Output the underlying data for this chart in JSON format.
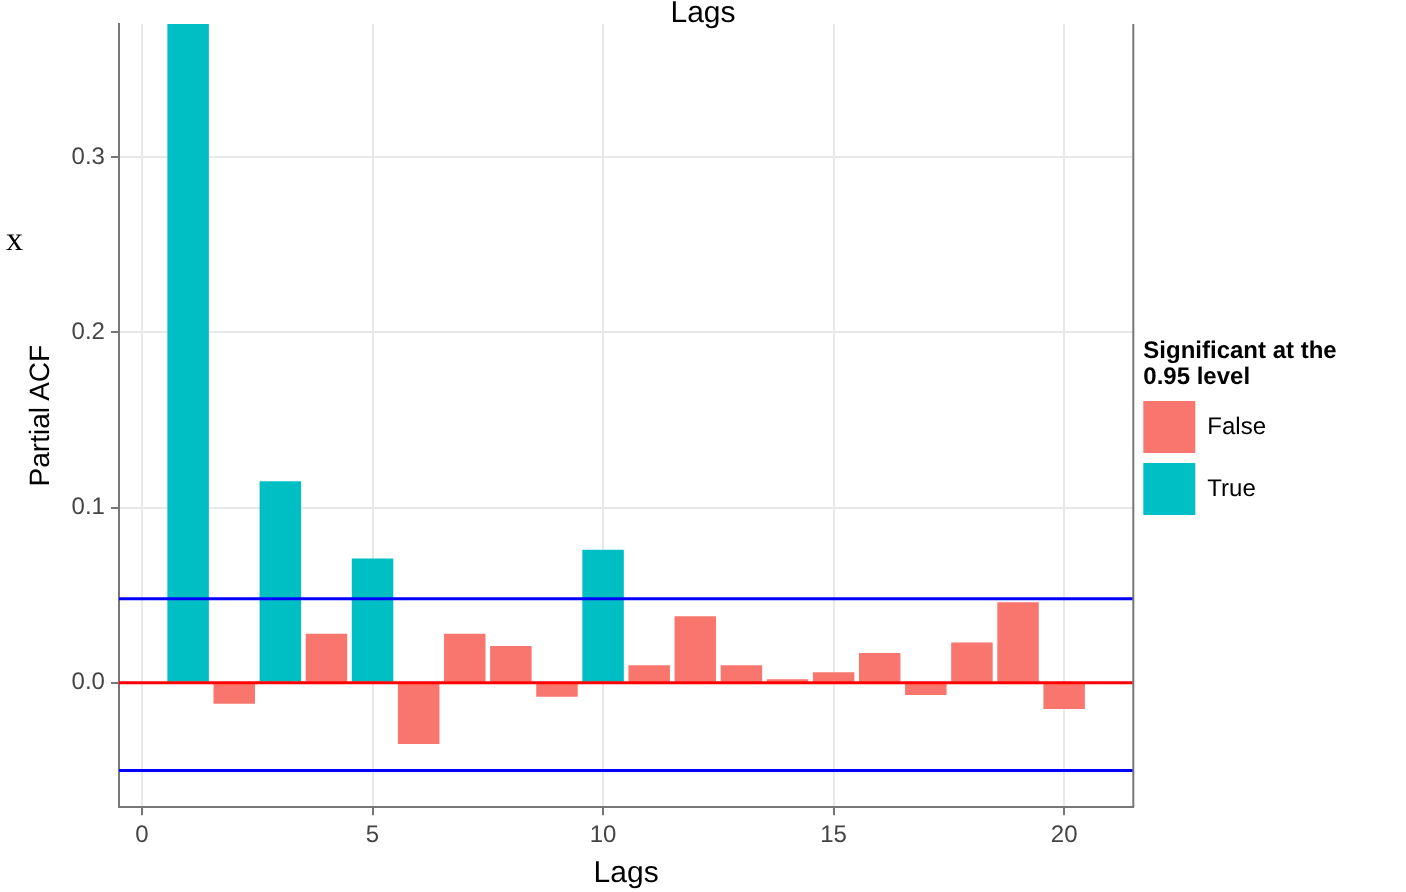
{
  "chart_data": {
    "type": "bar",
    "title": "Lags",
    "xlabel": "Lags",
    "ylabel": "Partial ACF",
    "legend_title": "Significant at the 0.95 level",
    "x": [
      1,
      2,
      3,
      4,
      5,
      6,
      7,
      8,
      9,
      10,
      11,
      12,
      13,
      14,
      15,
      16,
      17,
      18,
      19,
      20
    ],
    "series": [
      {
        "name": "False",
        "color": "#f8766d",
        "values": [
          null,
          -0.012,
          null,
          0.028,
          null,
          -0.035,
          0.028,
          0.021,
          -0.008,
          null,
          0.01,
          0.038,
          0.01,
          0.002,
          0.006,
          0.017,
          -0.007,
          0.023,
          0.046,
          -0.015
        ]
      },
      {
        "name": "True",
        "color": "#00bfc4",
        "values": [
          0.376,
          null,
          0.115,
          null,
          0.071,
          null,
          null,
          null,
          null,
          0.076,
          null,
          null,
          null,
          null,
          null,
          null,
          null,
          null,
          null,
          null
        ]
      }
    ],
    "xlim": [
      -0.5,
      21.5
    ],
    "xticks": [
      0,
      5,
      10,
      15,
      20
    ],
    "ylim": [
      -0.071,
      0.376
    ],
    "yticks": [
      {
        "value": 0,
        "label": "0.0"
      },
      0.1,
      0.2,
      0.3
    ],
    "ref_lines": [
      {
        "axis": "y",
        "value": 0,
        "color": "#ff0000"
      },
      {
        "axis": "y",
        "value": 0.048,
        "color": "#0000ff"
      },
      {
        "axis": "y",
        "value": -0.05,
        "color": "#0000ff"
      }
    ],
    "annotations": [
      "x"
    ],
    "grid": true,
    "legend": "right"
  }
}
